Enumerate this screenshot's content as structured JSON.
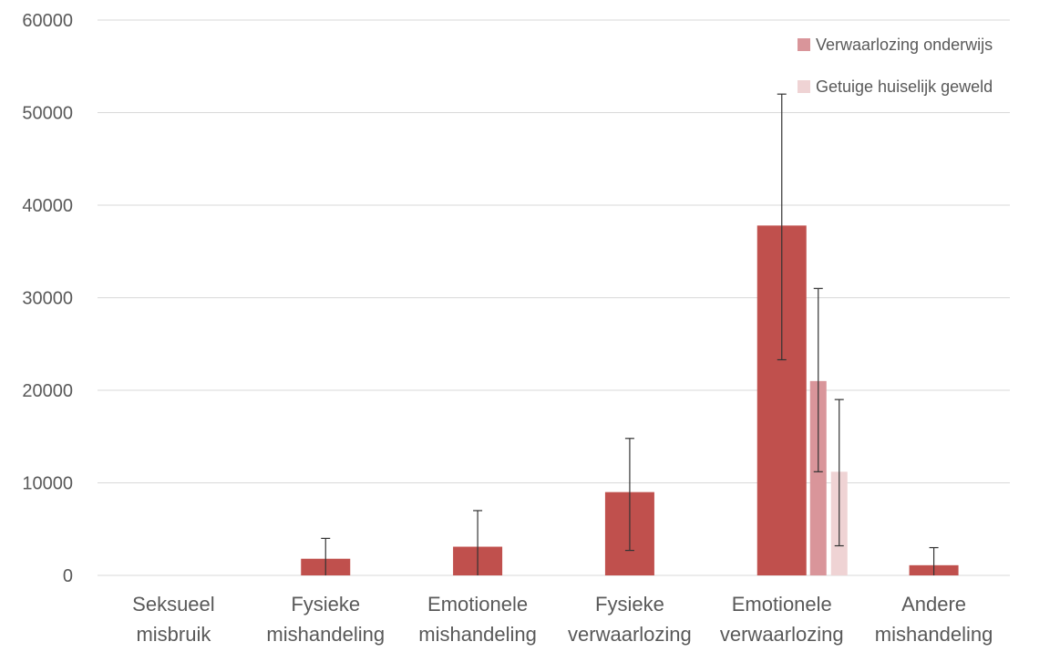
{
  "chart_data": {
    "type": "bar",
    "title": "",
    "xlabel": "",
    "ylabel": "",
    "ylim": [
      0,
      60000
    ],
    "yticks": [
      0,
      10000,
      20000,
      30000,
      40000,
      50000,
      60000
    ],
    "grid": true,
    "legend_position": "top-right",
    "categories": [
      [
        "Seksueel",
        "misbruik"
      ],
      [
        "Fysieke",
        "mishandeling"
      ],
      [
        "Emotionele",
        "mishandeling"
      ],
      [
        "Fysieke",
        "verwaarlozing"
      ],
      [
        "Emotionele",
        "verwaarlozing"
      ],
      [
        "Andere",
        "mishandeling"
      ]
    ],
    "bars": [
      {
        "category": 0,
        "value": 0,
        "err_low": 0,
        "err_high": 0,
        "color": "#c0504d"
      },
      {
        "category": 1,
        "value": 1800,
        "err_low": 0,
        "err_high": 4000,
        "color": "#c0504d"
      },
      {
        "category": 2,
        "value": 3100,
        "err_low": 0,
        "err_high": 7000,
        "color": "#c0504d"
      },
      {
        "category": 3,
        "value": 9000,
        "err_low": 2700,
        "err_high": 14800,
        "color": "#c0504d"
      },
      {
        "category": 4,
        "value": 37800,
        "err_low": 23300,
        "err_high": 52000,
        "color": "#c0504d"
      },
      {
        "category": 4,
        "value": 21000,
        "err_low": 11200,
        "err_high": 31000,
        "color": "#d9959a",
        "series": "Verwaarlozing onderwijs"
      },
      {
        "category": 4,
        "value": 11200,
        "err_low": 3200,
        "err_high": 19000,
        "color": "#efd3d4",
        "series": "Getuige huiselijk geweld"
      },
      {
        "category": 5,
        "value": 1100,
        "err_low": 0,
        "err_high": 3000,
        "color": "#c0504d"
      }
    ],
    "legend": [
      {
        "label": "Verwaarlozing onderwijs",
        "color": "#d9959a"
      },
      {
        "label": "Getuige huiselijk geweld",
        "color": "#efd3d4"
      }
    ]
  }
}
